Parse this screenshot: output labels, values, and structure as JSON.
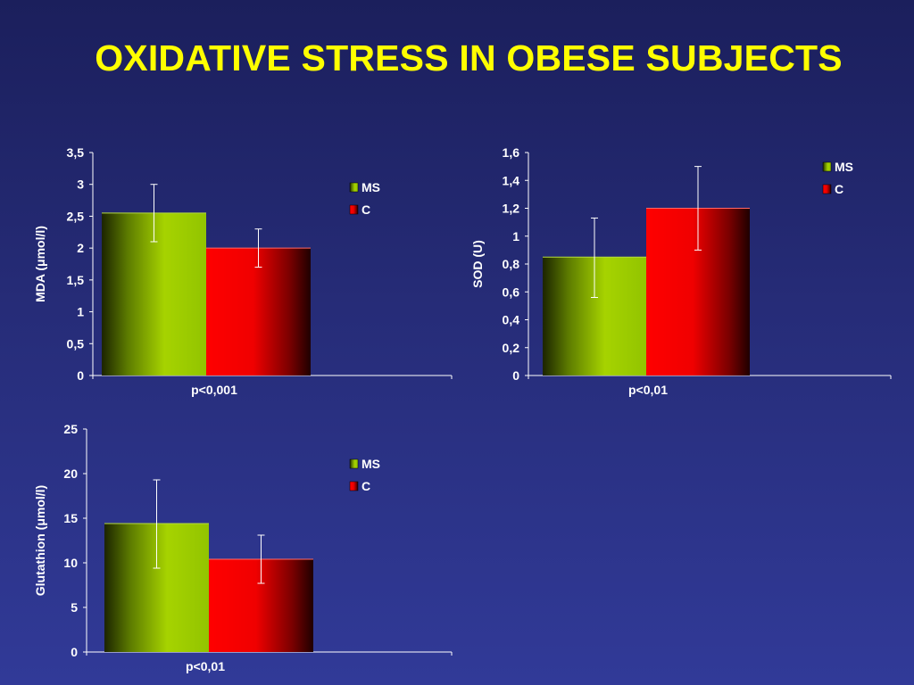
{
  "title": "OXIDATIVE STRESS IN OBESE SUBJECTS",
  "colors": {
    "background": "#262c78",
    "title": "#ffff00",
    "ms": "#99cc00",
    "c": "#ff0000"
  },
  "chart_data": [
    {
      "type": "bar",
      "categories": [
        "p<0,001"
      ],
      "series": [
        {
          "name": "MS",
          "values": [
            2.55
          ],
          "error_low": [
            2.1
          ],
          "error_high": [
            3.0
          ]
        },
        {
          "name": "C",
          "values": [
            2.0
          ],
          "error_low": [
            1.7
          ],
          "error_high": [
            2.3
          ]
        }
      ],
      "ylabel": "MDA (μmol/l)",
      "ylim": [
        0,
        3.5
      ],
      "yticks": [
        "0",
        "0,5",
        "1",
        "1,5",
        "2",
        "2,5",
        "3",
        "3,5"
      ],
      "legend": "top-right",
      "grid": false
    },
    {
      "type": "bar",
      "categories": [
        "p<0,01"
      ],
      "series": [
        {
          "name": "MS",
          "values": [
            0.85
          ],
          "error_low": [
            0.56
          ],
          "error_high": [
            1.13
          ]
        },
        {
          "name": "C",
          "values": [
            1.2
          ],
          "error_low": [
            0.9
          ],
          "error_high": [
            1.5
          ]
        }
      ],
      "ylabel": "SOD (U)",
      "ylim": [
        0,
        1.6
      ],
      "yticks": [
        "0",
        "0,2",
        "0,4",
        "0,6",
        "0,8",
        "1",
        "1,2",
        "1,4",
        "1,6"
      ],
      "legend": "top-right",
      "grid": false
    },
    {
      "type": "bar",
      "categories": [
        "p<0,01"
      ],
      "series": [
        {
          "name": "MS",
          "values": [
            14.4
          ],
          "error_low": [
            9.4
          ],
          "error_high": [
            19.3
          ]
        },
        {
          "name": "C",
          "values": [
            10.4
          ],
          "error_low": [
            7.7
          ],
          "error_high": [
            13.1
          ]
        }
      ],
      "ylabel": "Glutathion (μmol/l)",
      "ylim": [
        0,
        25
      ],
      "yticks": [
        "0",
        "5",
        "10",
        "15",
        "20",
        "25"
      ],
      "legend": "top-right",
      "grid": false
    }
  ]
}
